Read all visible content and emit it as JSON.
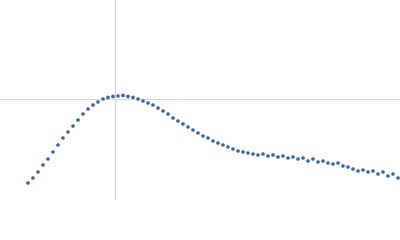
{
  "chart_data": {
    "type": "scatter",
    "color": "#3a66b0",
    "xlim": [
      0,
      6
    ],
    "ylim": [
      0,
      2.2
    ],
    "vlines": [
      1.732
    ],
    "hlines": [
      1.104
    ],
    "x": [
      0.42,
      0.495,
      0.57,
      0.645,
      0.72,
      0.795,
      0.87,
      0.945,
      1.02,
      1.095,
      1.17,
      1.245,
      1.32,
      1.395,
      1.47,
      1.545,
      1.62,
      1.695,
      1.77,
      1.845,
      1.92,
      1.995,
      2.07,
      2.145,
      2.22,
      2.295,
      2.37,
      2.445,
      2.52,
      2.595,
      2.67,
      2.745,
      2.82,
      2.895,
      2.97,
      3.045,
      3.12,
      3.195,
      3.27,
      3.345,
      3.42,
      3.495,
      3.57,
      3.645,
      3.72,
      3.795,
      3.87,
      3.945,
      4.02,
      4.095,
      4.17,
      4.245,
      4.32,
      4.395,
      4.47,
      4.545,
      4.62,
      4.695,
      4.77,
      4.845,
      4.92,
      4.995,
      5.07,
      5.145,
      5.22,
      5.295,
      5.37,
      5.445,
      5.52,
      5.595,
      5.67,
      5.745,
      5.82,
      5.895,
      5.97
    ],
    "values": [
      0.187,
      0.242,
      0.308,
      0.385,
      0.451,
      0.528,
      0.605,
      0.682,
      0.748,
      0.814,
      0.88,
      0.946,
      1.001,
      1.045,
      1.078,
      1.111,
      1.128,
      1.139,
      1.144,
      1.15,
      1.139,
      1.128,
      1.111,
      1.089,
      1.067,
      1.045,
      1.012,
      0.979,
      0.946,
      0.902,
      0.869,
      0.836,
      0.803,
      0.77,
      0.737,
      0.704,
      0.682,
      0.649,
      0.627,
      0.605,
      0.583,
      0.561,
      0.539,
      0.528,
      0.517,
      0.506,
      0.495,
      0.506,
      0.484,
      0.495,
      0.473,
      0.484,
      0.462,
      0.473,
      0.451,
      0.462,
      0.429,
      0.451,
      0.418,
      0.429,
      0.407,
      0.396,
      0.407,
      0.374,
      0.363,
      0.341,
      0.319,
      0.33,
      0.308,
      0.319,
      0.286,
      0.308,
      0.264,
      0.286,
      0.242
    ]
  }
}
